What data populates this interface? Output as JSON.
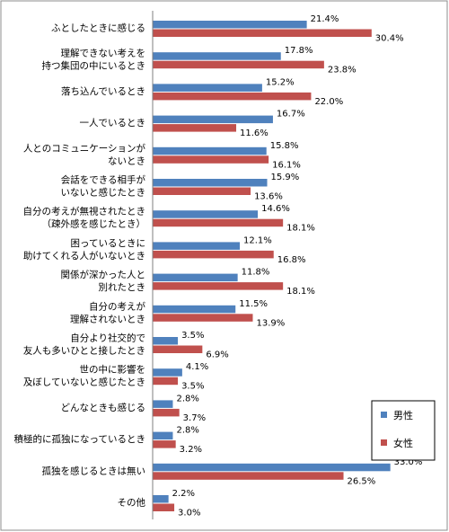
{
  "chart_data": {
    "type": "bar",
    "orientation": "horizontal",
    "categories": [
      [
        "ふとしたときに感じる"
      ],
      [
        "理解できない考えを",
        "持つ集団の中にいるとき"
      ],
      [
        "落ち込んでいるとき"
      ],
      [
        "一人でいるとき"
      ],
      [
        "人とのコミュニケーションが",
        "ないとき"
      ],
      [
        "会話をできる相手が",
        "いないと感じたとき"
      ],
      [
        "自分の考えが無視されたとき",
        "（疎外感を感じたとき）"
      ],
      [
        "困っているときに",
        "助けてくれる人がいないとき"
      ],
      [
        "関係が深かった人と",
        "別れたとき"
      ],
      [
        "自分の考えが",
        "理解されないとき"
      ],
      [
        "自分より社交的で",
        "友人も多いひとと接したとき"
      ],
      [
        "世の中に影響を",
        "及ぼしていないと感じたとき"
      ],
      [
        "どんなときも感じる"
      ],
      [
        "積極的に孤独になっているとき"
      ],
      [
        "孤独を感じるときは無い"
      ],
      [
        "その他"
      ]
    ],
    "series": [
      {
        "name": "男性",
        "color": "#4f81bd",
        "values": [
          21.4,
          17.8,
          15.2,
          16.7,
          15.8,
          15.9,
          14.6,
          12.1,
          11.8,
          11.5,
          3.5,
          4.1,
          2.8,
          2.8,
          33.0,
          2.2
        ],
        "labels": [
          "21.4%",
          "17.8%",
          "15.2%",
          "16.7%",
          "15.8%",
          "15.9%",
          "14.6%",
          "12.1%",
          "11.8%",
          "11.5%",
          "3.5%",
          "4.1%",
          "2.8%",
          "2.8%",
          "33.0%",
          "2.2%"
        ]
      },
      {
        "name": "女性",
        "color": "#c0504d",
        "values": [
          30.4,
          23.8,
          22.0,
          11.6,
          16.1,
          13.6,
          18.1,
          16.8,
          18.1,
          13.9,
          6.9,
          3.5,
          3.7,
          3.2,
          26.5,
          3.0
        ],
        "labels": [
          "30.4%",
          "23.8%",
          "22.0%",
          "11.6%",
          "16.1%",
          "13.6%",
          "18.1%",
          "16.8%",
          "18.1%",
          "13.9%",
          "6.9%",
          "3.5%",
          "3.7%",
          "3.2%",
          "26.5%",
          "3.0%"
        ]
      }
    ],
    "xlim": [
      0,
      40
    ],
    "grid": false,
    "legend": "right"
  }
}
